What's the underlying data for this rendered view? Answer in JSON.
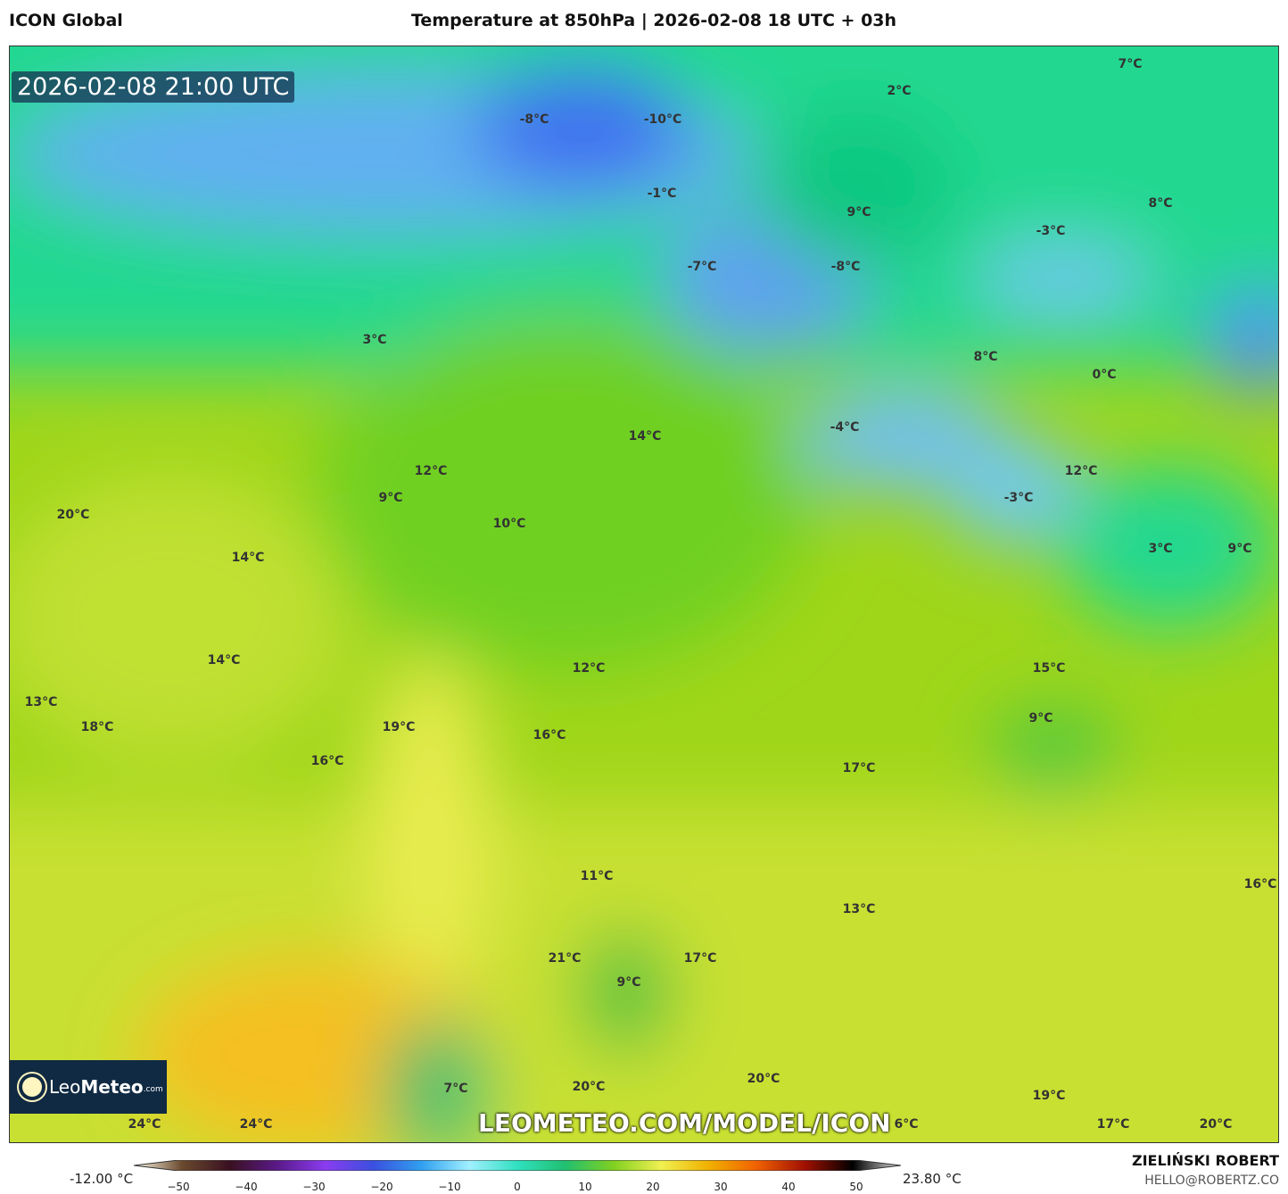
{
  "header": {
    "model": "ICON Global",
    "title": "Temperature at 850hPa | 2026-02-08 18 UTC + 03h"
  },
  "map": {
    "valid_time": "2026-02-08 21:00 UTC",
    "watermark": "LEOMETEO.COM/MODEL/ICON",
    "logo": {
      "name_light": "Leo",
      "name_bold": "Meteo",
      "suffix": ".com",
      "icon": "sun-icon"
    },
    "labels": [
      "7°C",
      "2°C",
      "-8°C",
      "-10°C",
      "-1°C",
      "9°C",
      "8°C",
      "-3°C",
      "-7°C",
      "-8°C",
      "3°C",
      "8°C",
      "0°C",
      "14°C",
      "-4°C",
      "12°C",
      "12°C",
      "9°C",
      "-3°C",
      "20°C",
      "10°C",
      "3°C",
      "9°C",
      "14°C",
      "12°C",
      "15°C",
      "14°C",
      "13°C",
      "18°C",
      "19°C",
      "9°C",
      "16°C",
      "16°C",
      "17°C",
      "16°C",
      "11°C",
      "13°C",
      "21°C",
      "17°C",
      "9°C",
      "20°C",
      "20°C",
      "19°C",
      "7°C",
      "24°C",
      "24°C",
      "6°C",
      "17°C",
      "20°C"
    ]
  },
  "colorbar": {
    "min_label": "-12.00 °C",
    "max_label": "23.80 °C",
    "ticks": [
      "−50",
      "−40",
      "−30",
      "−20",
      "−10",
      "0",
      "10",
      "20",
      "30",
      "40",
      "50"
    ],
    "range": [
      -55,
      55
    ],
    "colors": [
      "#fffbe8",
      "#6b4a2e",
      "#3a1020",
      "#5a1a8a",
      "#8a3cf0",
      "#3a50e0",
      "#30a0f0",
      "#a0f0ff",
      "#30e0c0",
      "#20c070",
      "#80d020",
      "#f0f050",
      "#f0b000",
      "#f06000",
      "#a01000",
      "#000000",
      "#e0e0e0"
    ]
  },
  "author": {
    "name": "ZIELIŃSKI ROBERT",
    "email": "HELLO@ROBERTZ.CO"
  }
}
